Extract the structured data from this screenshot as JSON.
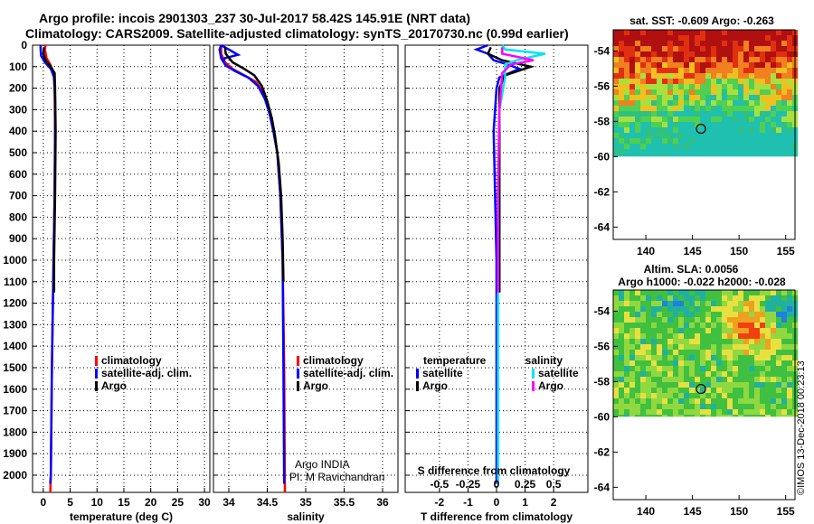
{
  "figure": {
    "title_line1": "Argo profile: incois 2901303_237 30-Jul-2017 58.42S 145.91E (NRT data)",
    "title_line2": "Climatology: CARS2009. Satellite-adjusted climatology: synTS_20170730.nc (0.99d earlier)",
    "credit": "©IMOS 13-Dec-2018 00:23:13",
    "colors": {
      "climatology": "#ff0000",
      "satellite": "#0000ff",
      "argo": "#000000",
      "sat_salinity": "#00e5ee",
      "argo_salinity": "#ff00ff"
    }
  },
  "chart_data": [
    {
      "type": "line",
      "name": "temperature",
      "xlabel": "temperature (deg C)",
      "ylabel": "",
      "xlim": [
        -2,
        31
      ],
      "ylim": [
        2080,
        0
      ],
      "xticks": [
        "0",
        "5",
        "10",
        "15",
        "20",
        "25",
        "30"
      ],
      "xtick_values": [
        0,
        5,
        10,
        15,
        20,
        25,
        30
      ],
      "yticks": [
        "0",
        "100",
        "200",
        "300",
        "400",
        "500",
        "600",
        "700",
        "800",
        "900",
        "1000",
        "1100",
        "1200",
        "1300",
        "1400",
        "1500",
        "1600",
        "1700",
        "1800",
        "1900",
        "2000"
      ],
      "ytick_values": [
        0,
        100,
        200,
        300,
        400,
        500,
        600,
        700,
        800,
        900,
        1000,
        1100,
        1200,
        1300,
        1400,
        1500,
        1600,
        1700,
        1800,
        1900,
        2000
      ],
      "legend": [
        "climatology",
        "satellite-adj. clim.",
        "Argo"
      ],
      "series": [
        {
          "name": "climatology",
          "color": "#ff0000",
          "points": [
            [
              0.4,
              0
            ],
            [
              0.3,
              20
            ],
            [
              0.6,
              60
            ],
            [
              1.3,
              90
            ],
            [
              1.9,
              130
            ],
            [
              2.1,
              200
            ],
            [
              2.2,
              400
            ],
            [
              2.1,
              700
            ],
            [
              1.9,
              1000
            ],
            [
              1.6,
              1500
            ],
            [
              1.4,
              2000
            ],
            [
              1.3,
              2080
            ]
          ]
        },
        {
          "name": "satellite-adj. clim.",
          "color": "#0000ff",
          "points": [
            [
              -0.5,
              0
            ],
            [
              -0.5,
              20
            ],
            [
              -0.4,
              50
            ],
            [
              0.3,
              80
            ],
            [
              1.4,
              110
            ],
            [
              2.0,
              150
            ],
            [
              2.2,
              250
            ],
            [
              2.2,
              400
            ],
            [
              2.1,
              700
            ],
            [
              1.9,
              1000
            ],
            [
              1.6,
              1500
            ],
            [
              1.4,
              2000
            ],
            [
              1.3,
              2040
            ]
          ]
        },
        {
          "name": "Argo",
          "color": "#000000",
          "points": [
            [
              0.1,
              10
            ],
            [
              0.0,
              40
            ],
            [
              0.4,
              70
            ],
            [
              1.4,
              100
            ],
            [
              2.1,
              130
            ],
            [
              2.2,
              200
            ],
            [
              2.3,
              400
            ],
            [
              2.2,
              700
            ],
            [
              2.0,
              1000
            ],
            [
              2.0,
              1150
            ]
          ]
        }
      ]
    },
    {
      "type": "line",
      "name": "salinity",
      "xlabel": "salinity",
      "xlim": [
        33.8,
        36.2
      ],
      "ylim": [
        2080,
        0
      ],
      "xticks": [
        "34",
        "34.5",
        "35",
        "35.5",
        "36"
      ],
      "xtick_values": [
        34,
        34.5,
        35,
        35.5,
        36
      ],
      "legend": [
        "climatology",
        "satellite-adj. clim.",
        "Argo"
      ],
      "annotation": [
        "Argo INDIA",
        "PI: M Ravichandran"
      ],
      "series": [
        {
          "name": "climatology",
          "color": "#ff0000",
          "points": [
            [
              33.9,
              0
            ],
            [
              33.9,
              40
            ],
            [
              33.95,
              80
            ],
            [
              34.05,
              110
            ],
            [
              34.2,
              140
            ],
            [
              34.35,
              170
            ],
            [
              34.45,
              220
            ],
            [
              34.52,
              300
            ],
            [
              34.58,
              400
            ],
            [
              34.63,
              500
            ],
            [
              34.67,
              700
            ],
            [
              34.7,
              1000
            ],
            [
              34.72,
              1500
            ],
            [
              34.73,
              2080
            ]
          ]
        },
        {
          "name": "satellite-adj. clim.",
          "color": "#0000ff",
          "points": [
            [
              33.9,
              0
            ],
            [
              33.88,
              20
            ],
            [
              33.9,
              60
            ],
            [
              33.96,
              95
            ],
            [
              34.08,
              120
            ],
            [
              34.25,
              150
            ],
            [
              34.38,
              190
            ],
            [
              34.47,
              250
            ],
            [
              34.53,
              320
            ],
            [
              34.58,
              400
            ],
            [
              34.63,
              500
            ],
            [
              34.67,
              700
            ],
            [
              34.7,
              1000
            ],
            [
              34.71,
              1500
            ],
            [
              34.72,
              2040
            ]
          ]
        },
        {
          "name": "satellite-adj. clim. (surface)",
          "color": "#0000ff",
          "points": [
            [
              33.9,
              0
            ],
            [
              34.0,
              20
            ],
            [
              34.12,
              45
            ],
            [
              33.95,
              60
            ],
            [
              33.92,
              80
            ]
          ]
        },
        {
          "name": "Argo",
          "color": "#000000",
          "points": [
            [
              33.95,
              10
            ],
            [
              33.96,
              40
            ],
            [
              34.05,
              80
            ],
            [
              34.2,
              110
            ],
            [
              34.33,
              140
            ],
            [
              34.43,
              190
            ],
            [
              34.5,
              260
            ],
            [
              34.56,
              340
            ],
            [
              34.6,
              420
            ],
            [
              34.65,
              550
            ],
            [
              34.68,
              700
            ],
            [
              34.7,
              900
            ],
            [
              34.71,
              1100
            ]
          ]
        }
      ]
    },
    {
      "type": "line",
      "name": "differences",
      "xlabel": "T difference from climatology",
      "xlabel_top": "S difference from climatology",
      "xlim": [
        -3.2,
        3.2
      ],
      "ylim": [
        2080,
        0
      ],
      "xticks": [
        "-2",
        "-1",
        "0",
        "1",
        "2"
      ],
      "xtick_values": [
        -2,
        -1,
        0,
        1,
        2
      ],
      "xticks_salinity": [
        "-0.5",
        "-0.25",
        "0",
        "0.25",
        "0.5"
      ],
      "legend_temperature_title": "temperature",
      "legend_salinity_title": "salinity",
      "legend_temperature": [
        "satellite",
        "Argo"
      ],
      "legend_salinity": [
        "satellite",
        "Argo"
      ],
      "series": [
        {
          "name": "T satellite",
          "color": "#0000ff",
          "points": [
            [
              -0.3,
              0
            ],
            [
              -0.7,
              20
            ],
            [
              -0.3,
              40
            ],
            [
              -0.1,
              70
            ],
            [
              0.4,
              90
            ],
            [
              0.8,
              110
            ],
            [
              0.1,
              150
            ],
            [
              0.0,
              200
            ],
            [
              -0.1,
              400
            ],
            [
              0.0,
              1000
            ],
            [
              0.0,
              1500
            ],
            [
              0.0,
              2040
            ]
          ]
        },
        {
          "name": "T Argo",
          "color": "#000000",
          "points": [
            [
              -0.2,
              10
            ],
            [
              -0.3,
              40
            ],
            [
              0.2,
              70
            ],
            [
              1.2,
              100
            ],
            [
              0.3,
              140
            ],
            [
              0.1,
              200
            ],
            [
              0.1,
              400
            ],
            [
              0.1,
              700
            ],
            [
              0.1,
              1000
            ],
            [
              0.1,
              1150
            ]
          ]
        },
        {
          "name": "S satellite",
          "color": "#00e5ee",
          "points": [
            [
              0.2,
              0
            ],
            [
              0.3,
              20
            ],
            [
              1.7,
              40
            ],
            [
              0.7,
              70
            ],
            [
              0.3,
              90
            ],
            [
              0.3,
              150
            ],
            [
              0.1,
              300
            ],
            [
              0.05,
              700
            ],
            [
              0.05,
              1500
            ],
            [
              0.05,
              2040
            ]
          ]
        },
        {
          "name": "S Argo",
          "color": "#ff00ff",
          "points": [
            [
              0.2,
              10
            ],
            [
              0.2,
              40
            ],
            [
              1.3,
              70
            ],
            [
              0.5,
              90
            ],
            [
              0.2,
              130
            ],
            [
              0.1,
              300
            ],
            [
              0.05,
              700
            ],
            [
              0.05,
              1150
            ]
          ]
        }
      ]
    },
    {
      "type": "heatmap",
      "name": "sst_map",
      "title": "sat. SST: -0.609 Argo: -0.263",
      "xticks": [
        "140",
        "145",
        "150",
        "155"
      ],
      "xtick_values": [
        140,
        145,
        150,
        155
      ],
      "yticks": [
        "-54",
        "-56",
        "-58",
        "-60",
        "-62",
        "-64"
      ],
      "ytick_values": [
        -54,
        -56,
        -58,
        -60,
        -62,
        -64
      ],
      "xlim": [
        136.5,
        156
      ],
      "ylim": [
        -64.7,
        -52.8
      ],
      "data_extent_lat": [
        -60,
        -52.8
      ],
      "marker": [
        145.91,
        -58.42
      ]
    },
    {
      "type": "heatmap",
      "name": "sla_map",
      "title": "Altim. SLA: 0.0056",
      "subtitle": "Argo h1000: -0.022 h2000: -0.028",
      "xticks": [
        "140",
        "145",
        "150",
        "155"
      ],
      "xtick_values": [
        140,
        145,
        150,
        155
      ],
      "yticks": [
        "-54",
        "-56",
        "-58",
        "-60",
        "-62",
        "-64"
      ],
      "ytick_values": [
        -54,
        -56,
        -58,
        -60,
        -62,
        -64
      ],
      "xlim": [
        136.5,
        156
      ],
      "ylim": [
        -64.7,
        -52.8
      ],
      "data_extent_lat": [
        -60,
        -52.8
      ],
      "marker": [
        145.91,
        -58.42
      ]
    }
  ]
}
